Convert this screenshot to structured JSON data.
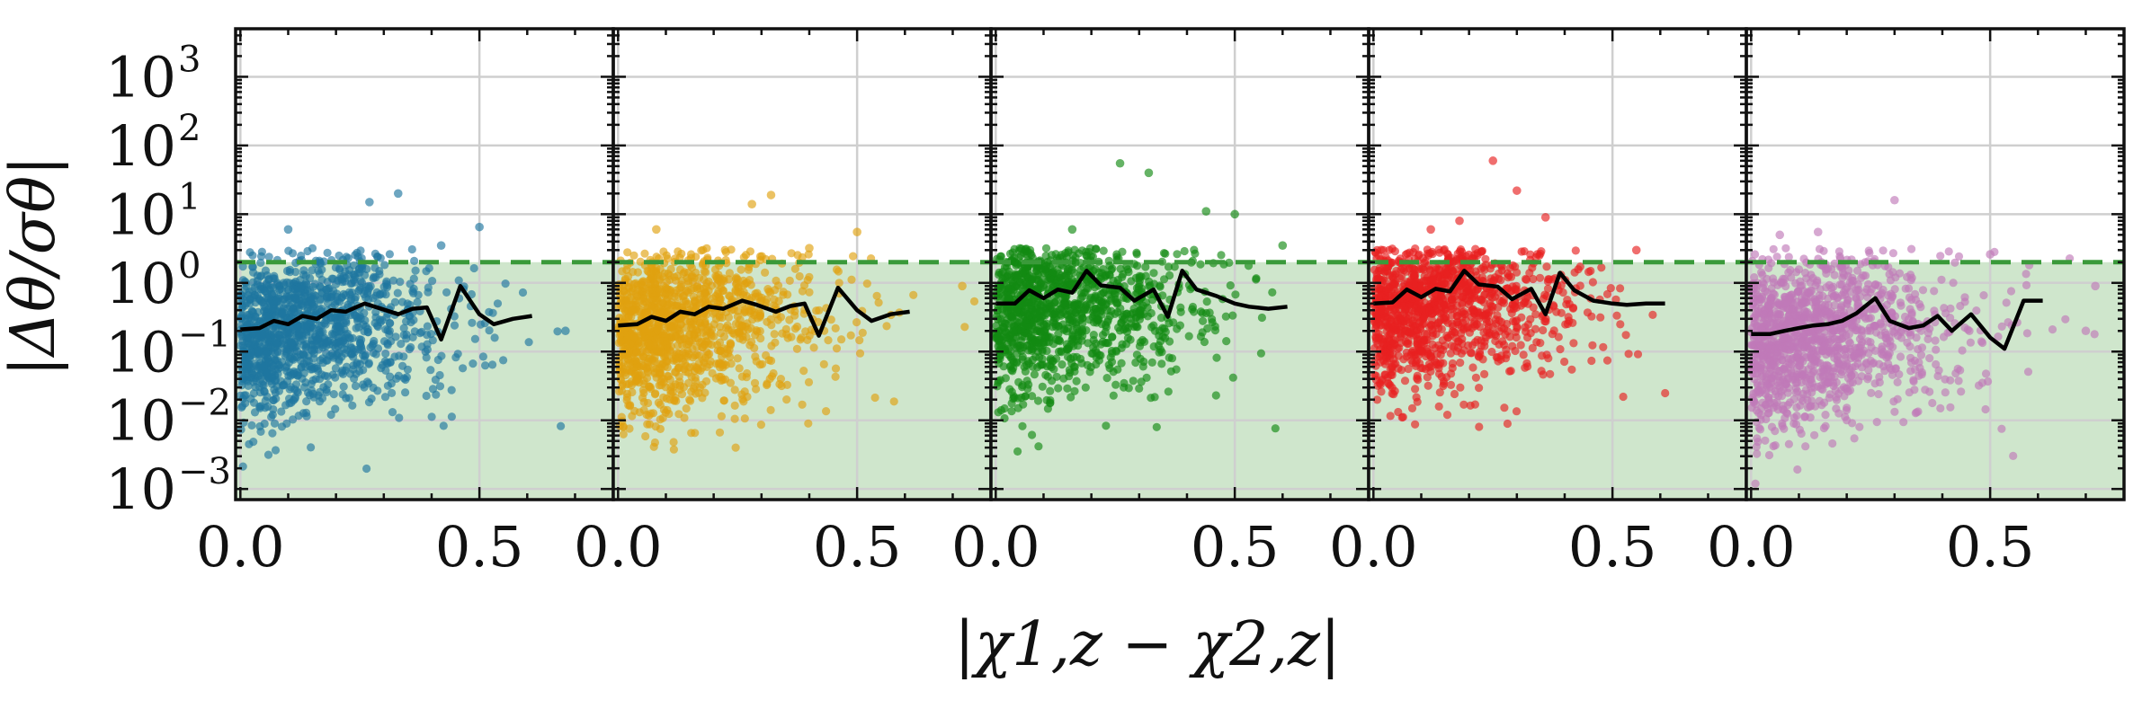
{
  "chart_data": {
    "type": "scatter",
    "layout": "1 row x 5 panels, shared y-axis",
    "xlabel": "|χ1,z − χ2,z|",
    "ylabel": "|Δθ/σθ|",
    "xlim": [
      -0.01,
      0.78
    ],
    "ylim": [
      0.0007,
      5000
    ],
    "y_scale": "log",
    "x_ticks": [
      0.0,
      0.5
    ],
    "x_tick_labels": [
      "0.0",
      "0.5"
    ],
    "y_ticks": [
      0.001,
      0.01,
      0.1,
      1,
      10,
      100,
      1000
    ],
    "y_tick_labels": [
      {
        "base": "10",
        "exp": "−3"
      },
      {
        "base": "10",
        "exp": "−2"
      },
      {
        "base": "10",
        "exp": "−1"
      },
      {
        "base": "10",
        "exp": "0"
      },
      {
        "base": "10",
        "exp": "1"
      },
      {
        "base": "10",
        "exp": "2"
      },
      {
        "base": "10",
        "exp": "3"
      }
    ],
    "grid": true,
    "threshold": {
      "y": 2.0,
      "color": "#3a9a3a",
      "style": "dashed",
      "fill_below": "#cfe6cc"
    },
    "panels": [
      {
        "color": "#1f77a0",
        "median_x": [
          0.0,
          0.04,
          0.07,
          0.1,
          0.13,
          0.16,
          0.19,
          0.22,
          0.26,
          0.29,
          0.33,
          0.36,
          0.39,
          0.42,
          0.46,
          0.5,
          0.53,
          0.57,
          0.61
        ],
        "median_y": [
          0.21,
          0.22,
          0.28,
          0.25,
          0.33,
          0.3,
          0.4,
          0.38,
          0.5,
          0.43,
          0.35,
          0.42,
          0.44,
          0.15,
          0.9,
          0.35,
          0.25,
          0.3,
          0.33
        ],
        "outliers": [
          [
            0.33,
            20
          ],
          [
            0.27,
            15
          ],
          [
            0.1,
            6
          ],
          [
            0.5,
            6.5
          ],
          [
            0.42,
            3.5
          ],
          [
            0.68,
            0.2
          ]
        ]
      },
      {
        "color": "#e0a20f",
        "median_x": [
          0.0,
          0.04,
          0.07,
          0.1,
          0.13,
          0.16,
          0.19,
          0.22,
          0.26,
          0.29,
          0.33,
          0.36,
          0.39,
          0.42,
          0.46,
          0.5,
          0.53,
          0.57,
          0.61
        ],
        "median_y": [
          0.24,
          0.25,
          0.32,
          0.28,
          0.38,
          0.35,
          0.45,
          0.42,
          0.55,
          0.48,
          0.38,
          0.46,
          0.5,
          0.17,
          0.85,
          0.4,
          0.28,
          0.35,
          0.38
        ],
        "outliers": [
          [
            0.32,
            19
          ],
          [
            0.28,
            14
          ],
          [
            0.08,
            6
          ],
          [
            0.5,
            5.5
          ],
          [
            0.4,
            3.2
          ],
          [
            0.72,
            0.9
          ]
        ]
      },
      {
        "color": "#138a13",
        "median_x": [
          0.0,
          0.04,
          0.07,
          0.1,
          0.13,
          0.16,
          0.19,
          0.22,
          0.26,
          0.29,
          0.33,
          0.36,
          0.39,
          0.42,
          0.46,
          0.5,
          0.53,
          0.57,
          0.61
        ],
        "median_y": [
          0.5,
          0.5,
          0.78,
          0.6,
          0.8,
          0.72,
          1.5,
          0.92,
          0.85,
          0.55,
          0.8,
          0.32,
          1.5,
          0.8,
          0.65,
          0.5,
          0.45,
          0.42,
          0.45
        ],
        "outliers": [
          [
            0.26,
            55
          ],
          [
            0.32,
            40
          ],
          [
            0.44,
            11
          ],
          [
            0.5,
            10
          ],
          [
            0.16,
            6
          ],
          [
            0.6,
            3.5
          ]
        ]
      },
      {
        "color": "#e82020",
        "median_x": [
          0.0,
          0.04,
          0.07,
          0.1,
          0.13,
          0.16,
          0.19,
          0.22,
          0.26,
          0.29,
          0.33,
          0.36,
          0.39,
          0.42,
          0.46,
          0.5,
          0.53,
          0.57,
          0.61
        ],
        "median_y": [
          0.5,
          0.52,
          0.8,
          0.62,
          0.82,
          0.75,
          1.5,
          0.95,
          0.88,
          0.58,
          0.82,
          0.35,
          1.4,
          0.78,
          0.55,
          0.5,
          0.48,
          0.5,
          0.5
        ],
        "outliers": [
          [
            0.25,
            60
          ],
          [
            0.3,
            22
          ],
          [
            0.18,
            8
          ],
          [
            0.36,
            9
          ],
          [
            0.12,
            6
          ],
          [
            0.55,
            3
          ]
        ]
      },
      {
        "color": "#c07ab8",
        "median_x": [
          0.0,
          0.04,
          0.07,
          0.1,
          0.13,
          0.16,
          0.19,
          0.22,
          0.26,
          0.29,
          0.33,
          0.36,
          0.39,
          0.42,
          0.46,
          0.5,
          0.53,
          0.57,
          0.61
        ],
        "median_y": [
          0.18,
          0.18,
          0.2,
          0.22,
          0.24,
          0.25,
          0.28,
          0.36,
          0.6,
          0.28,
          0.22,
          0.24,
          0.33,
          0.2,
          0.35,
          0.16,
          0.11,
          0.55,
          0.55
        ],
        "outliers": [
          [
            0.3,
            16
          ],
          [
            0.14,
            5.5
          ],
          [
            0.06,
            5
          ],
          [
            0.5,
            2.6
          ],
          [
            0.72,
            0.9
          ],
          [
            0.7,
            0.2
          ]
        ]
      }
    ]
  }
}
